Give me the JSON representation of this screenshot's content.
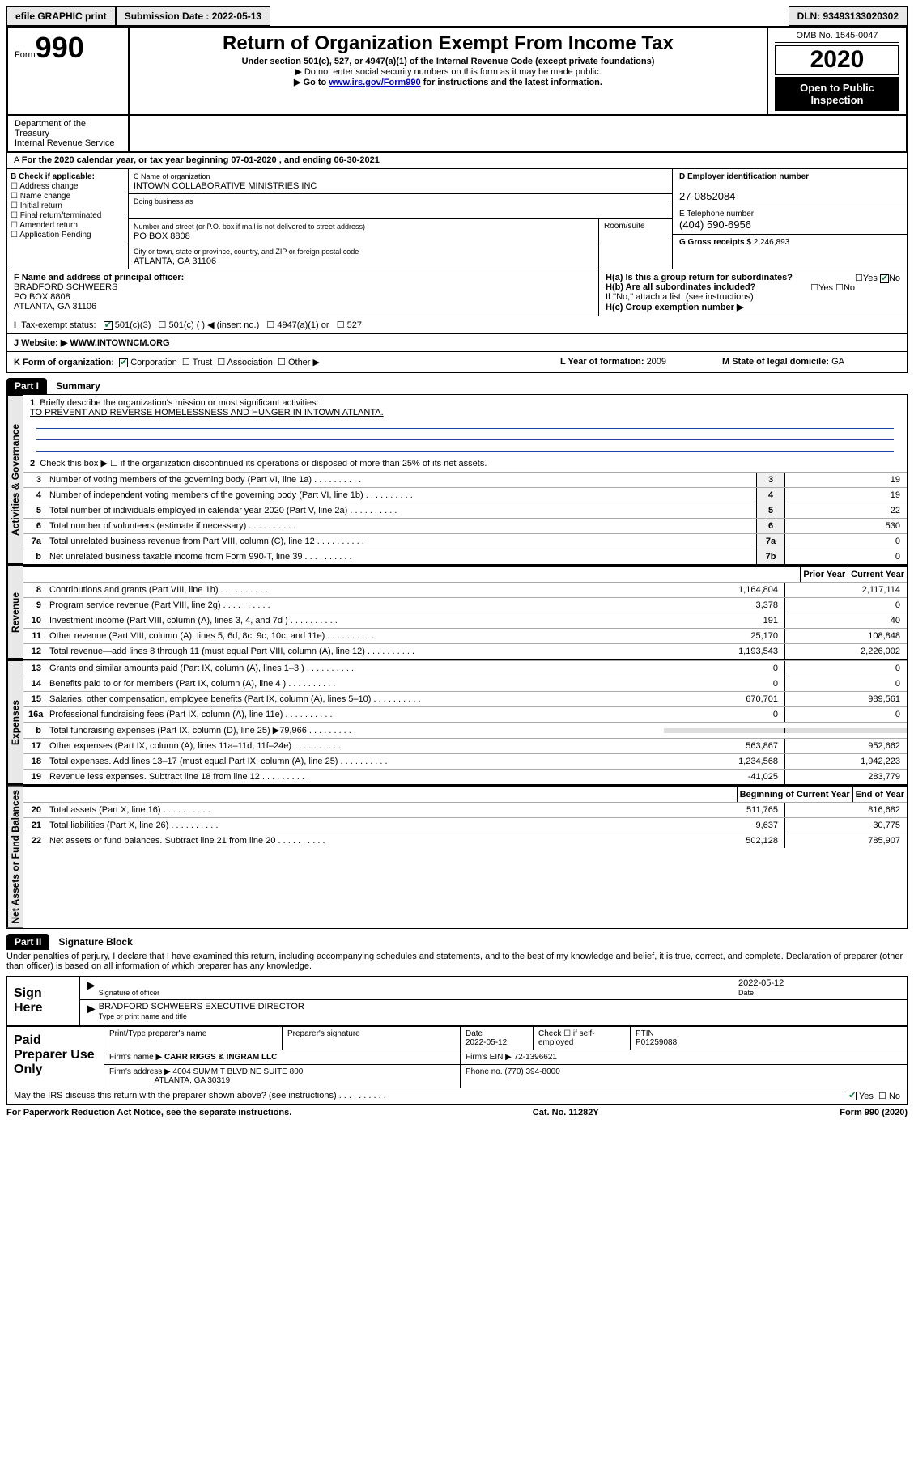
{
  "topbar": {
    "efile": "efile GRAPHIC print",
    "submission_label": "Submission Date : 2022-05-13",
    "dln": "DLN: 93493133020302"
  },
  "header": {
    "form_prefix": "Form",
    "form_number": "990",
    "title": "Return of Organization Exempt From Income Tax",
    "subtitle": "Under section 501(c), 527, or 4947(a)(1) of the Internal Revenue Code (except private foundations)",
    "note1": "▶ Do not enter social security numbers on this form as it may be made public.",
    "note2_prefix": "▶ Go to ",
    "note2_link": "www.irs.gov/Form990",
    "note2_suffix": " for instructions and the latest information.",
    "omb": "OMB No. 1545-0047",
    "year": "2020",
    "badge": "Open to Public Inspection",
    "dept": "Department of the Treasury\nInternal Revenue Service"
  },
  "lineA": "For the 2020 calendar year, or tax year beginning 07-01-2020   , and ending 06-30-2021",
  "boxB": {
    "hdr": "B Check if applicable:",
    "opts": [
      "Address change",
      "Name change",
      "Initial return",
      "Final return/terminated",
      "Amended return",
      "Application Pending"
    ]
  },
  "boxC": {
    "name_label": "C Name of organization",
    "name": "INTOWN COLLABORATIVE MINISTRIES INC",
    "dba_label": "Doing business as",
    "street_label": "Number and street (or P.O. box if mail is not delivered to street address)",
    "street": "PO BOX 8808",
    "suite_label": "Room/suite",
    "city_label": "City or town, state or province, country, and ZIP or foreign postal code",
    "city": "ATLANTA, GA  31106"
  },
  "boxD": {
    "ein_label": "D Employer identification number",
    "ein": "27-0852084",
    "tel_label": "E Telephone number",
    "tel": "(404) 590-6956",
    "gross_label": "G Gross receipts $ ",
    "gross": "2,246,893"
  },
  "boxF": {
    "label": "F  Name and address of principal officer:",
    "name": "BRADFORD SCHWEERS",
    "addr1": "PO BOX 8808",
    "addr2": "ATLANTA, GA  31106"
  },
  "boxH": {
    "a": "H(a)  Is this a group return for subordinates?",
    "b": "H(b)  Are all subordinates included?",
    "b_note": "If \"No,\" attach a list. (see instructions)",
    "c": "H(c)  Group exemption number ▶",
    "yes": "Yes",
    "no": "No"
  },
  "rowI": {
    "label": "Tax-exempt status:",
    "o1": "501(c)(3)",
    "o2": "501(c) (  ) ◀ (insert no.)",
    "o3": "4947(a)(1) or",
    "o4": "527"
  },
  "rowJ": {
    "label": "J   Website: ▶",
    "val": "  WWW.INTOWNCM.ORG"
  },
  "rowK": {
    "label": "K Form of organization:",
    "o1": "Corporation",
    "o2": "Trust",
    "o3": "Association",
    "o4": "Other ▶",
    "l_label": "L Year of formation: ",
    "l_val": "2009",
    "m_label": "M State of legal domicile: ",
    "m_val": "GA"
  },
  "part1": {
    "hdr": "Part I",
    "title": "Summary"
  },
  "summary": {
    "q1": "Briefly describe the organization's mission or most significant activities:",
    "q1_ans": "TO PREVENT AND REVERSE HOMELESSNESS AND HUNGER IN INTOWN ATLANTA.",
    "q2": "Check this box ▶ ☐  if the organization discontinued its operations or disposed of more than 25% of its net assets.",
    "rows": [
      {
        "n": "3",
        "t": "Number of voting members of the governing body (Part VI, line 1a)",
        "box": "3",
        "v": "19"
      },
      {
        "n": "4",
        "t": "Number of independent voting members of the governing body (Part VI, line 1b)",
        "box": "4",
        "v": "19"
      },
      {
        "n": "5",
        "t": "Total number of individuals employed in calendar year 2020 (Part V, line 2a)",
        "box": "5",
        "v": "22"
      },
      {
        "n": "6",
        "t": "Total number of volunteers (estimate if necessary)",
        "box": "6",
        "v": "530"
      },
      {
        "n": "7a",
        "t": "Total unrelated business revenue from Part VIII, column (C), line 12",
        "box": "7a",
        "v": "0"
      },
      {
        "n": "b",
        "t": "Net unrelated business taxable income from Form 990-T, line 39",
        "box": "7b",
        "v": "0"
      }
    ],
    "prior_year": "Prior Year",
    "current_year": "Current Year",
    "begin_year": "Beginning of Current Year",
    "end_year": "End of Year"
  },
  "revenue": [
    {
      "n": "8",
      "t": "Contributions and grants (Part VIII, line 1h)",
      "p": "1,164,804",
      "c": "2,117,114"
    },
    {
      "n": "9",
      "t": "Program service revenue (Part VIII, line 2g)",
      "p": "3,378",
      "c": "0"
    },
    {
      "n": "10",
      "t": "Investment income (Part VIII, column (A), lines 3, 4, and 7d )",
      "p": "191",
      "c": "40"
    },
    {
      "n": "11",
      "t": "Other revenue (Part VIII, column (A), lines 5, 6d, 8c, 9c, 10c, and 11e)",
      "p": "25,170",
      "c": "108,848"
    },
    {
      "n": "12",
      "t": "Total revenue—add lines 8 through 11 (must equal Part VIII, column (A), line 12)",
      "p": "1,193,543",
      "c": "2,226,002"
    }
  ],
  "expenses": [
    {
      "n": "13",
      "t": "Grants and similar amounts paid (Part IX, column (A), lines 1–3 )",
      "p": "0",
      "c": "0"
    },
    {
      "n": "14",
      "t": "Benefits paid to or for members (Part IX, column (A), line 4 )",
      "p": "0",
      "c": "0"
    },
    {
      "n": "15",
      "t": "Salaries, other compensation, employee benefits (Part IX, column (A), lines 5–10)",
      "p": "670,701",
      "c": "989,561"
    },
    {
      "n": "16a",
      "t": "Professional fundraising fees (Part IX, column (A), line 11e)",
      "p": "0",
      "c": "0"
    },
    {
      "n": "b",
      "t": "Total fundraising expenses (Part IX, column (D), line 25) ▶79,966",
      "p": "",
      "c": ""
    },
    {
      "n": "17",
      "t": "Other expenses (Part IX, column (A), lines 11a–11d, 11f–24e)",
      "p": "563,867",
      "c": "952,662"
    },
    {
      "n": "18",
      "t": "Total expenses. Add lines 13–17 (must equal Part IX, column (A), line 25)",
      "p": "1,234,568",
      "c": "1,942,223"
    },
    {
      "n": "19",
      "t": "Revenue less expenses. Subtract line 18 from line 12",
      "p": "-41,025",
      "c": "283,779"
    }
  ],
  "netassets": [
    {
      "n": "20",
      "t": "Total assets (Part X, line 16)",
      "p": "511,765",
      "c": "816,682"
    },
    {
      "n": "21",
      "t": "Total liabilities (Part X, line 26)",
      "p": "9,637",
      "c": "30,775"
    },
    {
      "n": "22",
      "t": "Net assets or fund balances. Subtract line 21 from line 20",
      "p": "502,128",
      "c": "785,907"
    }
  ],
  "sidelabels": {
    "gov": "Activities & Governance",
    "rev": "Revenue",
    "exp": "Expenses",
    "net": "Net Assets or Fund Balances"
  },
  "part2": {
    "hdr": "Part II",
    "title": "Signature Block",
    "decl": "Under penalties of perjury, I declare that I have examined this return, including accompanying schedules and statements, and to the best of my knowledge and belief, it is true, correct, and complete. Declaration of preparer (other than officer) is based on all information of which preparer has any knowledge."
  },
  "sign": {
    "here": "Sign Here",
    "sig_label": "Signature of officer",
    "date_label": "Date",
    "date": "2022-05-12",
    "name": "BRADFORD SCHWEERS  EXECUTIVE DIRECTOR",
    "name_label": "Type or print name and title"
  },
  "prep": {
    "hdr": "Paid Preparer Use Only",
    "col1": "Print/Type preparer's name",
    "col2": "Preparer's signature",
    "col3": "Date",
    "col3v": "2022-05-12",
    "col4": "Check ☐ if self-employed",
    "col5": "PTIN",
    "col5v": "P01259088",
    "firm_label": "Firm's name   ▶",
    "firm": "CARR RIGGS & INGRAM LLC",
    "ein_label": "Firm's EIN ▶ ",
    "ein": "72-1396621",
    "addr_label": "Firm's address ▶",
    "addr1": "4004 SUMMIT BLVD NE SUITE 800",
    "addr2": "ATLANTA, GA  30319",
    "phone_label": "Phone no. ",
    "phone": "(770) 394-8000"
  },
  "discuss": {
    "q": "May the IRS discuss this return with the preparer shown above? (see instructions)",
    "yes": "Yes",
    "no": "No"
  },
  "footer": {
    "left": "For Paperwork Reduction Act Notice, see the separate instructions.",
    "mid": "Cat. No. 11282Y",
    "right": "Form 990 (2020)"
  }
}
